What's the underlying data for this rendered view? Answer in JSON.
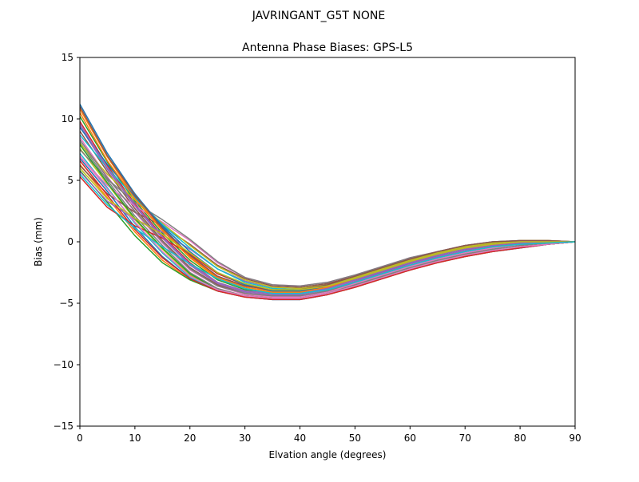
{
  "figure": {
    "suptitle": "JAVRINGANT_G5T  NONE"
  },
  "chart_data": {
    "type": "line",
    "title": "Antenna Phase Biases: GPS-L5",
    "xlabel": "Elvation angle (degrees)",
    "ylabel": "Bias (mm)",
    "xlim": [
      0,
      90
    ],
    "ylim": [
      -15,
      15
    ],
    "xticks": [
      0,
      10,
      20,
      30,
      40,
      50,
      60,
      70,
      80,
      90
    ],
    "yticks": [
      -15,
      -10,
      -5,
      0,
      5,
      10,
      15
    ],
    "xtick_labels": [
      "0",
      "10",
      "20",
      "30",
      "40",
      "50",
      "60",
      "70",
      "80",
      "90"
    ],
    "ytick_labels": [
      "−15",
      "−10",
      "−5",
      "0",
      "5",
      "10",
      "15"
    ],
    "grid": false,
    "legend": "none",
    "colors": [
      "#1f77b4",
      "#ff7f0e",
      "#2ca02c",
      "#d62728",
      "#9467bd",
      "#8c564b",
      "#e377c2",
      "#7f7f7f",
      "#bcbd22",
      "#17becf"
    ],
    "x": [
      0,
      5,
      10,
      15,
      20,
      25,
      30,
      35,
      40,
      45,
      50,
      55,
      60,
      65,
      70,
      75,
      80,
      85,
      90
    ],
    "series": [
      {
        "values": [
          11.2,
          7.2,
          3.9,
          1.2,
          -1.1,
          -2.8,
          -3.6,
          -3.9,
          -3.9,
          -3.5,
          -2.8,
          -2.1,
          -1.4,
          -0.8,
          -0.3,
          0.0,
          0.1,
          0.1,
          0.0
        ]
      },
      {
        "values": [
          10.8,
          6.9,
          3.6,
          1.0,
          -1.2,
          -2.9,
          -3.7,
          -4.0,
          -4.0,
          -3.6,
          -2.9,
          -2.2,
          -1.5,
          -0.9,
          -0.4,
          -0.1,
          0.1,
          0.1,
          0.0
        ]
      },
      {
        "values": [
          10.2,
          6.5,
          3.3,
          0.7,
          -1.5,
          -3.1,
          -3.9,
          -4.1,
          -4.1,
          -3.7,
          -3.0,
          -2.3,
          -1.6,
          -1.0,
          -0.5,
          -0.2,
          0.0,
          0.0,
          0.0
        ]
      },
      {
        "values": [
          9.8,
          6.2,
          3.1,
          0.5,
          -1.7,
          -3.3,
          -4.0,
          -4.2,
          -4.2,
          -3.8,
          -3.1,
          -2.4,
          -1.7,
          -1.1,
          -0.6,
          -0.3,
          -0.1,
          0.0,
          0.0
        ]
      },
      {
        "values": [
          9.4,
          5.9,
          2.9,
          0.3,
          -1.9,
          -3.4,
          -4.1,
          -4.3,
          -4.3,
          -3.9,
          -3.2,
          -2.5,
          -1.8,
          -1.2,
          -0.7,
          -0.3,
          -0.1,
          0.0,
          0.0
        ]
      },
      {
        "values": [
          9.0,
          5.7,
          2.7,
          0.1,
          -2.1,
          -3.5,
          -4.2,
          -4.4,
          -4.4,
          -4.0,
          -3.3,
          -2.6,
          -1.9,
          -1.3,
          -0.8,
          -0.4,
          -0.2,
          -0.1,
          0.0
        ]
      },
      {
        "values": [
          8.5,
          5.3,
          2.4,
          -0.1,
          -2.3,
          -3.6,
          -4.3,
          -4.5,
          -4.5,
          -4.1,
          -3.4,
          -2.7,
          -2.0,
          -1.4,
          -0.9,
          -0.5,
          -0.2,
          -0.1,
          0.0
        ]
      },
      {
        "values": [
          8.1,
          5.0,
          2.1,
          -0.3,
          -2.5,
          -3.8,
          -4.4,
          -4.6,
          -4.6,
          -4.2,
          -3.5,
          -2.8,
          -2.1,
          -1.5,
          -1.0,
          -0.6,
          -0.3,
          -0.1,
          0.0
        ]
      },
      {
        "values": [
          7.6,
          4.7,
          1.8,
          -0.6,
          -2.7,
          -3.9,
          -4.4,
          -4.6,
          -4.6,
          -4.3,
          -3.6,
          -2.9,
          -2.2,
          -1.6,
          -1.1,
          -0.7,
          -0.4,
          -0.2,
          0.0
        ]
      },
      {
        "values": [
          7.2,
          4.4,
          1.5,
          -0.9,
          -2.9,
          -4.0,
          -4.5,
          -4.7,
          -4.7,
          -4.3,
          -3.7,
          -3.0,
          -2.3,
          -1.7,
          -1.2,
          -0.8,
          -0.5,
          -0.2,
          0.0
        ]
      },
      {
        "values": [
          6.8,
          4.1,
          1.2,
          -1.2,
          -3.0,
          -4.0,
          -4.5,
          -4.7,
          -4.7,
          -4.3,
          -3.7,
          -3.0,
          -2.3,
          -1.7,
          -1.2,
          -0.8,
          -0.5,
          -0.2,
          0.0
        ]
      },
      {
        "values": [
          6.3,
          3.6,
          0.8,
          -1.5,
          -3.1,
          -4.0,
          -4.5,
          -4.6,
          -4.6,
          -4.3,
          -3.7,
          -3.0,
          -2.3,
          -1.7,
          -1.2,
          -0.8,
          -0.4,
          -0.2,
          0.0
        ]
      },
      {
        "values": [
          5.8,
          3.2,
          0.5,
          -1.7,
          -3.1,
          -4.0,
          -4.4,
          -4.6,
          -4.6,
          -4.2,
          -3.6,
          -2.9,
          -2.2,
          -1.6,
          -1.1,
          -0.7,
          -0.4,
          -0.2,
          0.0
        ]
      },
      {
        "values": [
          5.3,
          2.8,
          1.3,
          0.3,
          -1.0,
          -2.6,
          -3.5,
          -3.9,
          -4.0,
          -3.7,
          -3.1,
          -2.4,
          -1.7,
          -1.1,
          -0.6,
          -0.3,
          -0.1,
          0.0,
          0.0
        ]
      },
      {
        "values": [
          5.7,
          3.3,
          1.8,
          0.8,
          -0.6,
          -2.2,
          -3.2,
          -3.7,
          -3.8,
          -3.5,
          -2.9,
          -2.2,
          -1.5,
          -1.0,
          -0.5,
          -0.2,
          0.0,
          0.0,
          0.0
        ]
      },
      {
        "values": [
          6.2,
          3.9,
          2.4,
          1.3,
          -0.2,
          -1.9,
          -3.0,
          -3.6,
          -3.7,
          -3.4,
          -2.8,
          -2.1,
          -1.4,
          -0.9,
          -0.4,
          -0.1,
          0.0,
          0.0,
          0.0
        ]
      },
      {
        "values": [
          6.9,
          4.6,
          2.9,
          1.6,
          0.1,
          -1.7,
          -2.9,
          -3.5,
          -3.6,
          -3.3,
          -2.7,
          -2.0,
          -1.3,
          -0.8,
          -0.3,
          -0.1,
          0.1,
          0.1,
          0.0
        ]
      },
      {
        "values": [
          7.5,
          5.1,
          3.2,
          1.8,
          0.2,
          -1.6,
          -2.9,
          -3.5,
          -3.6,
          -3.3,
          -2.7,
          -2.0,
          -1.3,
          -0.8,
          -0.3,
          0.0,
          0.1,
          0.1,
          0.0
        ]
      },
      {
        "values": [
          8.0,
          5.5,
          3.4,
          1.5,
          -0.3,
          -2.0,
          -3.1,
          -3.7,
          -3.8,
          -3.5,
          -2.9,
          -2.2,
          -1.5,
          -0.9,
          -0.4,
          -0.1,
          0.1,
          0.1,
          0.0
        ]
      },
      {
        "values": [
          8.7,
          6.0,
          3.6,
          1.4,
          -0.5,
          -2.2,
          -3.3,
          -3.8,
          -3.9,
          -3.6,
          -3.0,
          -2.3,
          -1.6,
          -1.0,
          -0.5,
          -0.2,
          0.0,
          0.0,
          0.0
        ]
      },
      {
        "values": [
          9.3,
          6.3,
          3.7,
          1.3,
          -0.8,
          -2.5,
          -3.5,
          -4.0,
          -4.0,
          -3.7,
          -3.1,
          -2.4,
          -1.7,
          -1.1,
          -0.6,
          -0.2,
          0.0,
          0.0,
          0.0
        ]
      },
      {
        "values": [
          10.5,
          6.6,
          3.5,
          0.9,
          -1.3,
          -3.0,
          -3.8,
          -4.1,
          -4.1,
          -3.7,
          -3.0,
          -2.3,
          -1.6,
          -1.0,
          -0.5,
          -0.2,
          0.0,
          0.0,
          0.0
        ]
      },
      {
        "values": [
          7.9,
          4.8,
          1.9,
          -0.5,
          -2.6,
          -3.9,
          -4.4,
          -4.6,
          -4.6,
          -4.2,
          -3.6,
          -2.9,
          -2.2,
          -1.6,
          -1.1,
          -0.7,
          -0.4,
          -0.2,
          0.0
        ]
      },
      {
        "values": [
          6.6,
          3.8,
          1.0,
          -1.3,
          -3.0,
          -4.0,
          -4.5,
          -4.7,
          -4.7,
          -4.3,
          -3.7,
          -3.0,
          -2.3,
          -1.7,
          -1.2,
          -0.8,
          -0.5,
          -0.2,
          0.0
        ]
      },
      {
        "values": [
          9.6,
          6.0,
          3.0,
          0.4,
          -1.8,
          -3.3,
          -4.0,
          -4.2,
          -4.2,
          -3.8,
          -3.1,
          -2.4,
          -1.7,
          -1.1,
          -0.6,
          -0.3,
          -0.1,
          0.0,
          0.0
        ]
      },
      {
        "values": [
          11.0,
          7.0,
          3.8,
          1.1,
          -1.1,
          -2.8,
          -3.6,
          -3.9,
          -3.9,
          -3.5,
          -2.8,
          -2.1,
          -1.4,
          -0.8,
          -0.3,
          0.0,
          0.1,
          0.1,
          0.0
        ]
      },
      {
        "values": [
          7.0,
          4.3,
          1.6,
          -0.8,
          -2.8,
          -3.9,
          -4.4,
          -4.6,
          -4.6,
          -4.2,
          -3.6,
          -2.9,
          -2.2,
          -1.6,
          -1.1,
          -0.7,
          -0.4,
          -0.2,
          0.0
        ]
      },
      {
        "values": [
          8.3,
          5.2,
          2.5,
          0.0,
          -2.2,
          -3.6,
          -4.2,
          -4.4,
          -4.4,
          -4.0,
          -3.3,
          -2.6,
          -1.9,
          -1.3,
          -0.8,
          -0.4,
          -0.2,
          -0.1,
          0.0
        ]
      },
      {
        "values": [
          6.0,
          3.5,
          1.9,
          0.6,
          -0.9,
          -2.5,
          -3.4,
          -3.9,
          -3.9,
          -3.6,
          -3.0,
          -2.3,
          -1.6,
          -1.0,
          -0.5,
          -0.2,
          0.0,
          0.0,
          0.0
        ]
      },
      {
        "values": [
          5.5,
          3.0,
          1.1,
          -0.4,
          -1.8,
          -3.0,
          -3.8,
          -4.2,
          -4.2,
          -3.9,
          -3.3,
          -2.6,
          -1.9,
          -1.3,
          -0.8,
          -0.4,
          -0.2,
          -0.1,
          0.0
        ]
      }
    ]
  }
}
